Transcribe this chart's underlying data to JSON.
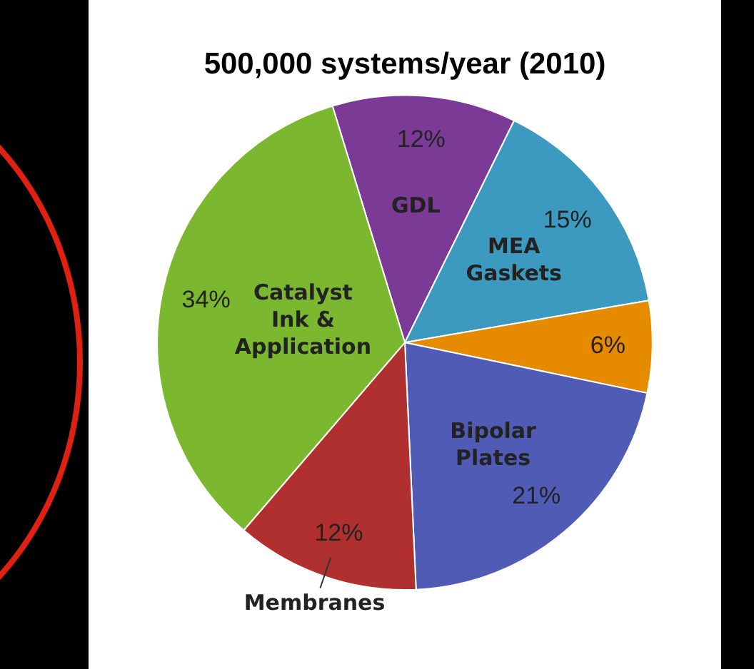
{
  "chart_data": {
    "type": "pie",
    "title": "500,000 systems/year (2010)",
    "categories": [
      "GDL",
      "MEA Gaskets",
      null,
      "Bipolar Plates",
      "Membranes",
      "Catalyst Ink & Application"
    ],
    "values": [
      12,
      15,
      6,
      21,
      12,
      34
    ],
    "value_labels": [
      "12%",
      "15%",
      "6%",
      "21%",
      "12%",
      "34%"
    ],
    "colors": [
      "#7b3a96",
      "#3c9ac0",
      "#e68a00",
      "#4f5bb5",
      "#b03030",
      "#7cb82f"
    ],
    "legend": false
  }
}
